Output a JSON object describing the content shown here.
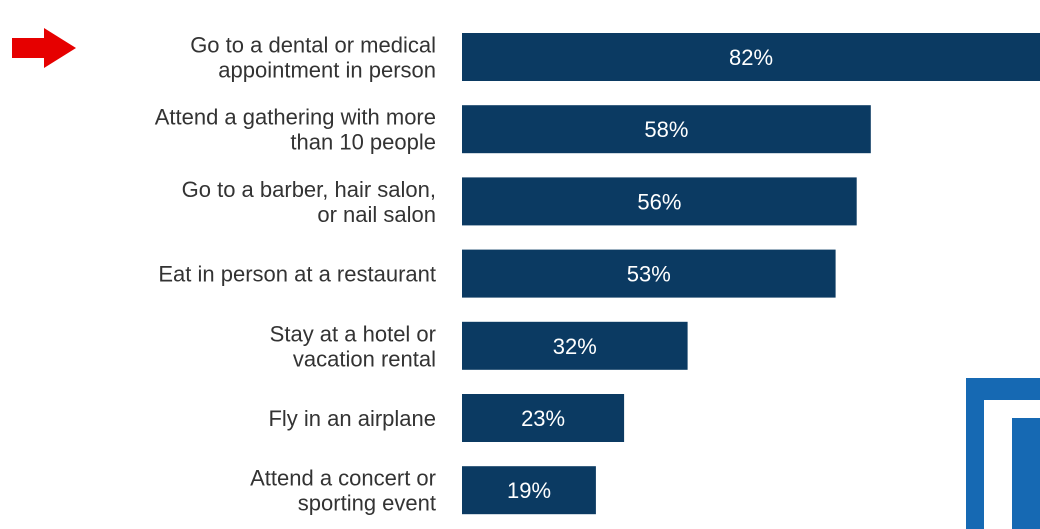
{
  "chart_data": {
    "type": "bar",
    "orientation": "horizontal",
    "categories": [
      [
        "Go to a dental or medical",
        "appointment in person"
      ],
      [
        "Attend a gathering with more",
        "than 10 people"
      ],
      [
        "Go to a barber, hair salon,",
        "or nail salon"
      ],
      [
        "Eat in person at a restaurant"
      ],
      [
        "Stay at a hotel or",
        "vacation rental"
      ],
      [
        "Fly in an airplane"
      ],
      [
        "Attend a concert or",
        "sporting event"
      ]
    ],
    "values": [
      82,
      58,
      56,
      53,
      32,
      23,
      19
    ],
    "data_labels": [
      "82%",
      "58%",
      "56%",
      "53%",
      "32%",
      "23%",
      "19%"
    ],
    "title": "",
    "xlabel": "",
    "ylabel": "",
    "xlim": [
      0,
      82
    ],
    "grid": false,
    "legend": "none",
    "highlighted_category_index": 0
  },
  "colors": {
    "bar": "#0b3a62",
    "arrow": "#e60000",
    "label_text": "#333333",
    "value_text": "#ffffff",
    "logo_blue": "#1669b3"
  },
  "icons": {
    "pointer": "red-arrow-icon",
    "logo": "logo-fragment"
  }
}
